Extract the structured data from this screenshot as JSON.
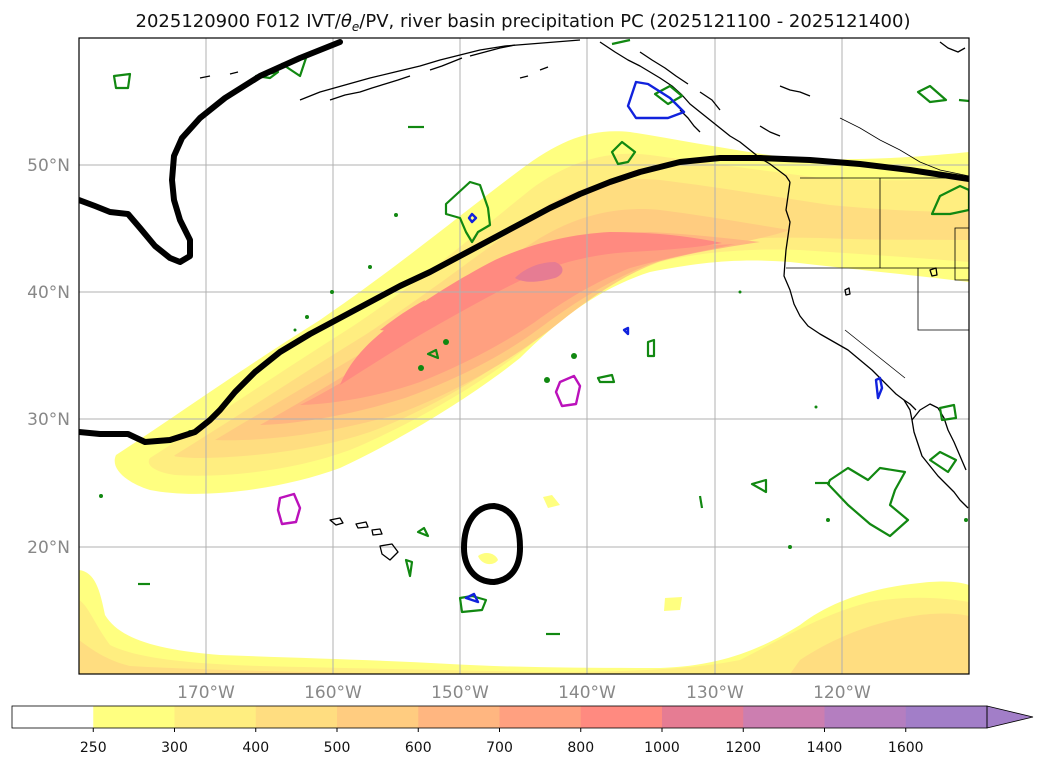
{
  "map": {
    "title_pre": "2025120900 F012 IVT/",
    "title_theta": "θ",
    "title_sub": "e",
    "title_post": "/PV, river basin precipitation PC (2025121100 - 2025121400)",
    "lat_labels": [
      "50°N",
      "40°N",
      "30°N",
      "20°N"
    ],
    "lon_labels": [
      "170°W",
      "160°W",
      "150°W",
      "140°W",
      "130°W",
      "120°W"
    ],
    "extent": {
      "lon_min": -180,
      "lon_max": -110,
      "lat_min": 10,
      "lat_max": 60
    },
    "layers": {
      "ivt_fill": "IVT shading",
      "pv_contour": "PV contour (black)",
      "precip_pc_green": "river basin precipitation PC (green)",
      "precip_pc_blue": "river basin precipitation PC (blue)",
      "precip_pc_magenta": "river basin precipitation PC (magenta)"
    }
  },
  "colorbar": {
    "ticks": [
      "250",
      "300",
      "400",
      "500",
      "600",
      "700",
      "800",
      "1000",
      "1200",
      "1400",
      "1600"
    ],
    "colors": [
      "#ffffff",
      "#ffff80",
      "#ffee80",
      "#ffdd80",
      "#ffcc80",
      "#ffb680",
      "#ffa080",
      "#ff8a80",
      "#e67c93",
      "#cc7eb0",
      "#b47ec0",
      "#a27ec8"
    ],
    "extend": "max"
  }
}
